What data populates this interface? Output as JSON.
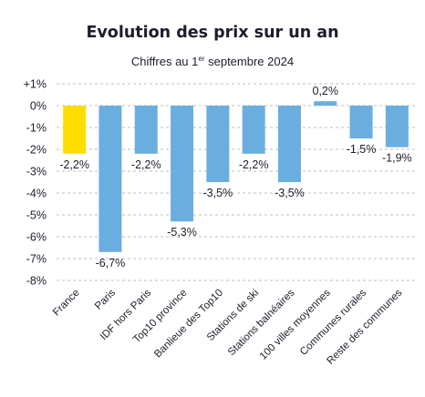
{
  "chart_data": {
    "type": "bar",
    "title": "Evolution des prix sur un an",
    "subtitle": {
      "prefix": "Chiffres au 1",
      "superscript": "er",
      "suffix": " septembre 2024"
    },
    "categories": [
      "France",
      "Paris",
      "IDF hors Paris",
      "Top10 province",
      "Banlieue des Top10",
      "Stations de ski",
      "Stations balnéaires",
      "100 villes moyennes",
      "Communes rurales",
      "Reste des communes"
    ],
    "values": [
      -2.2,
      -6.7,
      -2.2,
      -5.3,
      -3.5,
      -2.2,
      -3.5,
      0.2,
      -1.5,
      -1.9
    ],
    "data_labels": [
      "-2,2%",
      "-6,7%",
      "-2,2%",
      "-5,3%",
      "-3,5%",
      "-2,2%",
      "-3,5%",
      "0,2%",
      "-1,5%",
      "-1,9%"
    ],
    "ylim": [
      -8,
      1
    ],
    "yticks": [
      1,
      0,
      -1,
      -2,
      -3,
      -4,
      -5,
      -6,
      -7,
      -8
    ],
    "ytick_labels": [
      "+1%",
      "0%",
      "-1%",
      "-2%",
      "-3%",
      "-4%",
      "-5%",
      "-6%",
      "-7%",
      "-8%"
    ],
    "grid": "dashed horizontal",
    "colors": {
      "highlight": "#ffdd00",
      "bar": "#6aaee0",
      "grid": "#bfbfbf",
      "text": "#1d1d2b"
    },
    "highlight_category": "France"
  }
}
